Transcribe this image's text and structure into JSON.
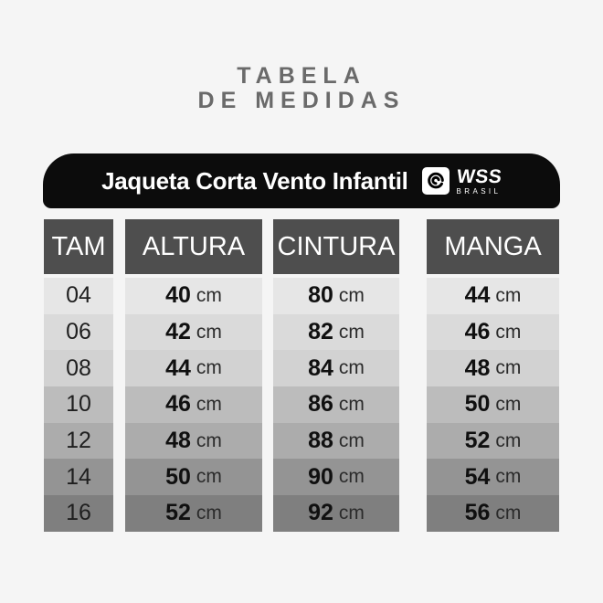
{
  "page": {
    "background": "#f5f5f5"
  },
  "title": {
    "line1": "TABELA",
    "line2": "DE MEDIDAS",
    "color": "#6a6a6a"
  },
  "banner": {
    "product": "Jaqueta Corta Vento Infantil",
    "background": "#0c0c0c",
    "logo": {
      "brand": "WSS",
      "sub": "BRASIL",
      "icon": "wave-swirl-icon"
    }
  },
  "table": {
    "unit": "cm",
    "header_bg": "#4e4e4e",
    "row_shades": [
      "#e6e6e6",
      "#dadada",
      "#d2d2d2",
      "#bcbcbc",
      "#acacac",
      "#949494",
      "#7f7f7f"
    ],
    "columns": [
      {
        "key": "tam",
        "label": "TAM"
      },
      {
        "key": "altura",
        "label": "ALTURA"
      },
      {
        "key": "cintura",
        "label": "CINTURA"
      },
      {
        "key": "manga",
        "label": "MANGA"
      }
    ],
    "rows": [
      {
        "tam": "04",
        "altura": "40",
        "cintura": "80",
        "manga": "44"
      },
      {
        "tam": "06",
        "altura": "42",
        "cintura": "82",
        "manga": "46"
      },
      {
        "tam": "08",
        "altura": "44",
        "cintura": "84",
        "manga": "48"
      },
      {
        "tam": "10",
        "altura": "46",
        "cintura": "86",
        "manga": "50"
      },
      {
        "tam": "12",
        "altura": "48",
        "cintura": "88",
        "manga": "52"
      },
      {
        "tam": "14",
        "altura": "50",
        "cintura": "90",
        "manga": "54"
      },
      {
        "tam": "16",
        "altura": "52",
        "cintura": "92",
        "manga": "56"
      }
    ]
  },
  "chart_data": {
    "type": "table",
    "title": "TABELA DE MEDIDAS",
    "subtitle": "Jaqueta Corta Vento Infantil",
    "columns": [
      "TAM",
      "ALTURA",
      "CINTURA",
      "MANGA"
    ],
    "rows": [
      [
        "04",
        "40 cm",
        "80 cm",
        "44 cm"
      ],
      [
        "06",
        "42 cm",
        "82 cm",
        "46 cm"
      ],
      [
        "08",
        "44 cm",
        "84 cm",
        "48 cm"
      ],
      [
        "10",
        "46 cm",
        "86 cm",
        "50 cm"
      ],
      [
        "12",
        "48 cm",
        "88 cm",
        "52 cm"
      ],
      [
        "14",
        "50 cm",
        "90 cm",
        "54 cm"
      ],
      [
        "16",
        "52 cm",
        "92 cm",
        "56 cm"
      ]
    ]
  }
}
